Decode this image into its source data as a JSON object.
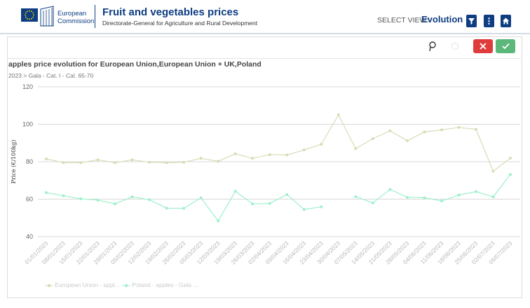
{
  "header": {
    "logo_line1": "European",
    "logo_line2": "Commission",
    "title": "Fruit and vegetables prices",
    "subtitle": "Directorate-General for Agriculture and Rural Development",
    "select_view_label": "SELECT VIEW:",
    "select_view_value": "Evolution"
  },
  "colors": {
    "brand": "#0e3d82",
    "eu_series": "#d8dcb5",
    "poland_series": "#9ef0cc",
    "cancel": "#df3d3d",
    "confirm": "#5cb87a"
  },
  "icons": {
    "filter": "filter-icon",
    "menu": "kebab-menu-icon",
    "home": "home-icon",
    "pin": "pin-icon",
    "cancel": "close-icon",
    "confirm": "check-icon"
  },
  "chart_data": {
    "type": "line",
    "title": "apples price evolution for European Union,European Union + UK,Poland",
    "subtitle": "2023 > Gala - Cat. I - Cal. 65-70",
    "ylabel": "Price (€/100kg)",
    "xlabel": "",
    "ylim": [
      40,
      120
    ],
    "yticks": [
      40,
      60,
      80,
      100,
      120
    ],
    "grid": true,
    "legend_position": "bottom-left",
    "x": [
      "01/01/2023",
      "08/01/2023",
      "15/01/2023",
      "22/01/2023",
      "29/01/2023",
      "05/02/2023",
      "12/02/2023",
      "19/02/2023",
      "26/02/2023",
      "05/03/2023",
      "12/03/2023",
      "19/03/2023",
      "26/03/2023",
      "02/04/2023",
      "09/04/2023",
      "16/04/2023",
      "23/04/2023",
      "30/04/2023",
      "07/05/2023",
      "14/05/2023",
      "21/05/2023",
      "28/05/2023",
      "04/06/2023",
      "11/06/2023",
      "18/06/2023",
      "25/06/2023",
      "02/07/2023",
      "09/07/2023"
    ],
    "series": [
      {
        "name": "European Union - appl...",
        "color": "#d8dcb5",
        "values": [
          81.5,
          79.5,
          79.5,
          81,
          79.5,
          81,
          79.7,
          79.5,
          79.7,
          81.8,
          80.2,
          84.2,
          81.8,
          83.8,
          83.6,
          86.3,
          89.3,
          105,
          87,
          92.3,
          96.5,
          91.2,
          95.9,
          97,
          98.3,
          97.3,
          74.9,
          81.9
        ]
      },
      {
        "name": "Poland - apples - Gala ...",
        "color": "#9ef0cc",
        "values": [
          63.5,
          61.8,
          60.2,
          59.5,
          57.5,
          61.2,
          59.7,
          55.2,
          55.1,
          60.7,
          48.4,
          64.2,
          57.5,
          57.7,
          62.5,
          54.5,
          55.9,
          null,
          61.3,
          58,
          65.2,
          61,
          60.8,
          59,
          62.2,
          64,
          61.2,
          73.2
        ]
      }
    ]
  }
}
